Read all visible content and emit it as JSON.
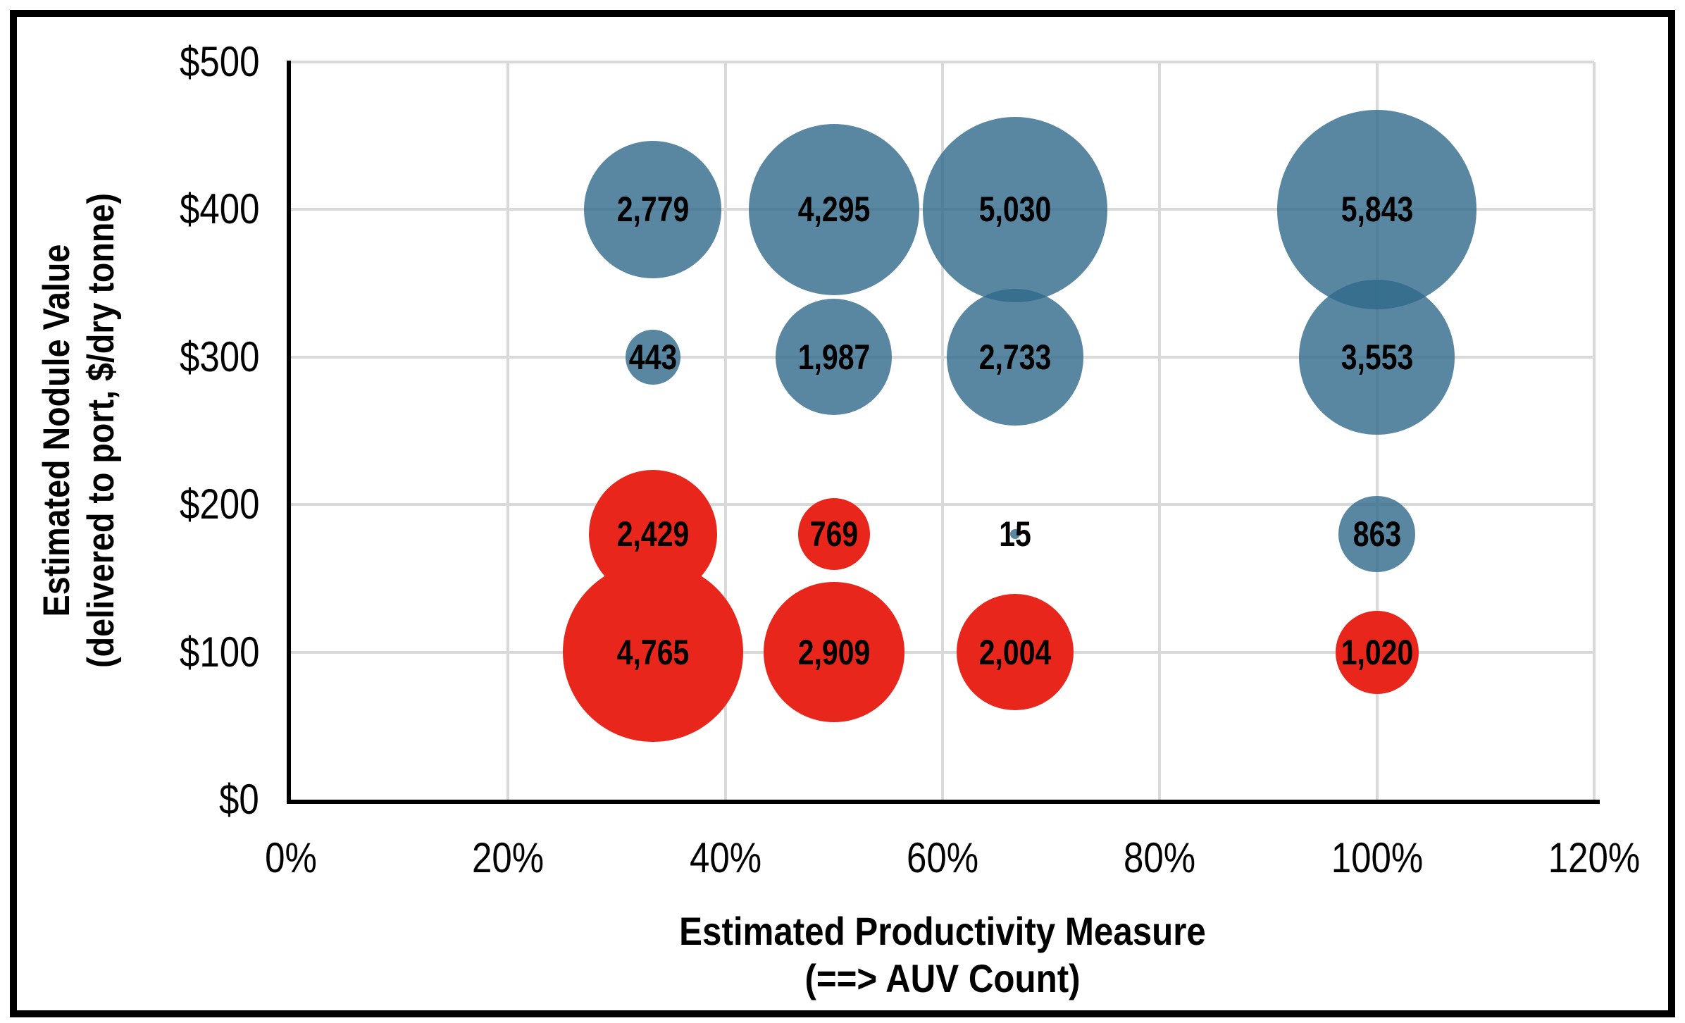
{
  "chart_data": {
    "type": "bubble",
    "title": "",
    "grid": "on",
    "legend": "none",
    "x_axis": {
      "title_lines": [
        "Estimated Productivity Measure",
        "(==> AUV Count)"
      ],
      "tick_labels": [
        "0%",
        "20%",
        "40%",
        "60%",
        "80%",
        "100%",
        "120%"
      ],
      "tick_values": [
        0,
        20,
        40,
        60,
        80,
        100,
        120
      ],
      "range": [
        0,
        120
      ]
    },
    "y_axis": {
      "title_lines": [
        "Estimated Nodule Value",
        "(delivered to port, $/dry tonne)"
      ],
      "tick_labels": [
        "$0",
        "$100",
        "$200",
        "$300",
        "$400",
        "$500"
      ],
      "tick_values": [
        0,
        100,
        200,
        300,
        400,
        500
      ],
      "range": [
        0,
        500
      ]
    },
    "colors": {
      "blue_series": "#2F698A",
      "blue_fill": "rgba(47,105,138,0.8)",
      "red_series": "#E9261C",
      "gridline": "#D9D9D9",
      "axis": "#000000",
      "data_label": "#000000",
      "frame": "#000000"
    },
    "series": [
      {
        "name": "blue-series",
        "color_key": "blue",
        "points": [
          {
            "x": 33.33,
            "y": 400,
            "value": 2779,
            "label": "2,779"
          },
          {
            "x": 50,
            "y": 400,
            "value": 4295,
            "label": "4,295"
          },
          {
            "x": 66.67,
            "y": 400,
            "value": 5030,
            "label": "5,030"
          },
          {
            "x": 100,
            "y": 400,
            "value": 5843,
            "label": "5,843"
          },
          {
            "x": 33.33,
            "y": 300,
            "value": 443,
            "label": "443"
          },
          {
            "x": 50,
            "y": 300,
            "value": 1987,
            "label": "1,987"
          },
          {
            "x": 66.67,
            "y": 300,
            "value": 2733,
            "label": "2,733"
          },
          {
            "x": 100,
            "y": 300,
            "value": 3553,
            "label": "3,553"
          },
          {
            "x": 66.67,
            "y": 180,
            "value": 15,
            "label": "15"
          },
          {
            "x": 100,
            "y": 180,
            "value": 863,
            "label": "863"
          }
        ]
      },
      {
        "name": "red-series",
        "color_key": "red",
        "points": [
          {
            "x": 33.33,
            "y": 180,
            "value": 2429,
            "label": "2,429"
          },
          {
            "x": 50,
            "y": 180,
            "value": 769,
            "label": "769"
          },
          {
            "x": 33.33,
            "y": 100,
            "value": 4765,
            "label": "4,765"
          },
          {
            "x": 50,
            "y": 100,
            "value": 2909,
            "label": "2,909"
          },
          {
            "x": 66.67,
            "y": 100,
            "value": 2004,
            "label": "2,004"
          },
          {
            "x": 100,
            "y": 100,
            "value": 1020,
            "label": "1,020"
          }
        ]
      }
    ]
  }
}
